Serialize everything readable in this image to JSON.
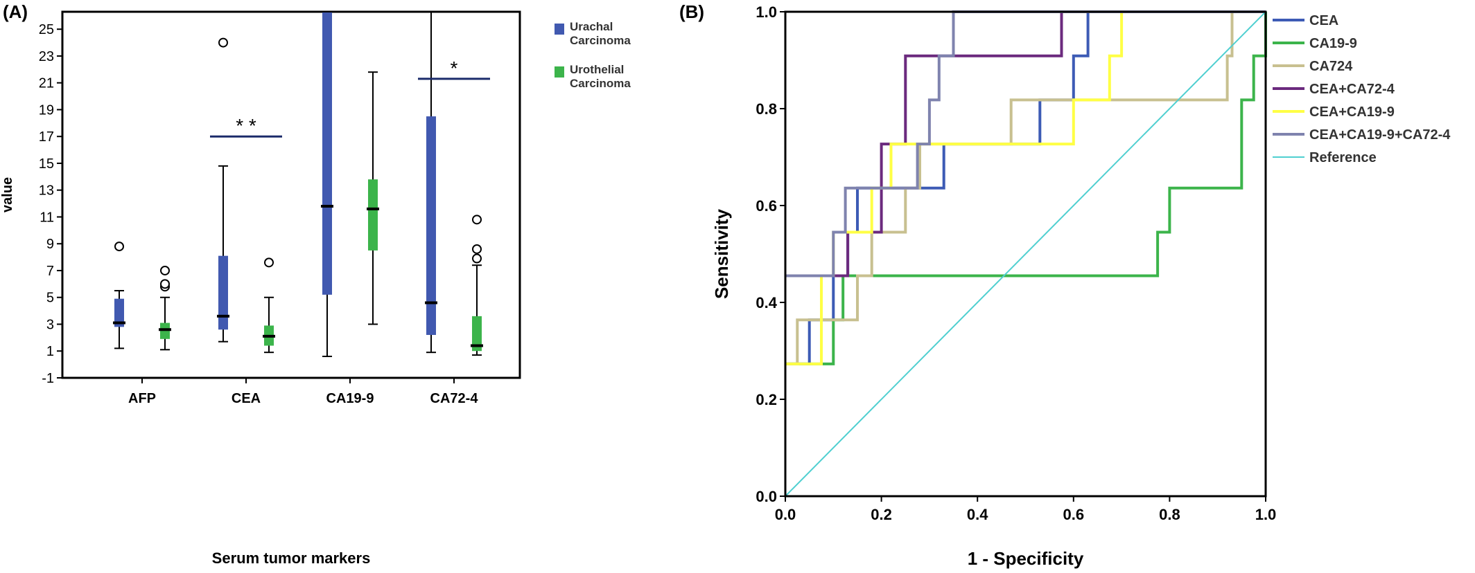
{
  "chart_data": [
    {
      "panel_label": "(A)",
      "type": "box",
      "xlabel": "Serum tumor markers",
      "ylabel": "value",
      "ylim": [
        -1,
        26.3
      ],
      "y_ticks": [
        -1,
        1,
        3,
        5,
        7,
        9,
        11,
        13,
        15,
        17,
        19,
        21,
        23,
        25
      ],
      "categories": [
        "AFP",
        "CEA",
        "CA19-9",
        "CA72-4"
      ],
      "legend": {
        "placement": "outside-right",
        "entries": [
          {
            "line1": "Urachal",
            "line2": "Carcinoma",
            "color": "#4159b0"
          },
          {
            "line1": "Urothelial",
            "line2": "Carcinoma",
            "color": "#3cb44b"
          }
        ]
      },
      "series": [
        {
          "name": "Urachal Carcinoma",
          "color": "#4159b0",
          "boxes": [
            {
              "category": "AFP",
              "whisker_low": 1.2,
              "q1": 2.8,
              "median": 3.1,
              "q3": 4.9,
              "whisker_high": 5.5,
              "outliers": [
                8.8
              ]
            },
            {
              "category": "CEA",
              "whisker_low": 1.7,
              "q1": 2.6,
              "median": 3.6,
              "q3": 8.1,
              "whisker_high": 14.8,
              "outliers": [
                24.0
              ]
            },
            {
              "category": "CA19-9",
              "whisker_low": 0.6,
              "q1": 5.2,
              "median": 11.8,
              "q3": 26.3,
              "whisker_high": 26.3,
              "outliers": []
            },
            {
              "category": "CA72-4",
              "whisker_low": 0.9,
              "q1": 2.2,
              "median": 4.6,
              "q3": 18.5,
              "whisker_high": 26.3,
              "outliers": []
            }
          ]
        },
        {
          "name": "Urothelial Carcinoma",
          "color": "#3cb44b",
          "boxes": [
            {
              "category": "AFP",
              "whisker_low": 1.1,
              "q1": 1.9,
              "median": 2.6,
              "q3": 3.1,
              "whisker_high": 5.0,
              "outliers": [
                5.8,
                6.0,
                7.0
              ]
            },
            {
              "category": "CEA",
              "whisker_low": 0.9,
              "q1": 1.4,
              "median": 2.1,
              "q3": 2.9,
              "whisker_high": 5.0,
              "outliers": [
                7.6
              ]
            },
            {
              "category": "CA19-9",
              "whisker_low": 3.0,
              "q1": 8.5,
              "median": 11.6,
              "q3": 13.8,
              "whisker_high": 21.8,
              "outliers": []
            },
            {
              "category": "CA72-4",
              "whisker_low": 0.7,
              "q1": 1.0,
              "median": 1.4,
              "q3": 3.6,
              "whisker_high": 7.4,
              "outliers": [
                7.9,
                8.6,
                10.8
              ]
            }
          ]
        }
      ],
      "significance": [
        {
          "category": "CEA",
          "label": "* *",
          "y": 17.0
        },
        {
          "category": "CA72-4",
          "label": "*",
          "y": 21.3
        }
      ]
    },
    {
      "panel_label": "(B)",
      "type": "line",
      "xlabel": "1 - Specificity",
      "ylabel": "Sensitivity",
      "xlim": [
        0,
        1
      ],
      "ylim": [
        0,
        1
      ],
      "x_ticks": [
        "0.0",
        "0.2",
        "0.4",
        "0.6",
        "0.8",
        "1.0"
      ],
      "y_ticks": [
        "0.0",
        "0.2",
        "0.4",
        "0.6",
        "0.8",
        "1.0"
      ],
      "legend": {
        "placement": "outside-right"
      },
      "series": [
        {
          "name": "CEA",
          "color": "#3d5bb5",
          "width": 4,
          "points": [
            [
              0,
              0.273
            ],
            [
              0.05,
              0.273
            ],
            [
              0.05,
              0.364
            ],
            [
              0.1,
              0.364
            ],
            [
              0.1,
              0.455
            ],
            [
              0.13,
              0.455
            ],
            [
              0.13,
              0.545
            ],
            [
              0.15,
              0.545
            ],
            [
              0.15,
              0.636
            ],
            [
              0.33,
              0.636
            ],
            [
              0.33,
              0.727
            ],
            [
              0.53,
              0.727
            ],
            [
              0.53,
              0.818
            ],
            [
              0.6,
              0.818
            ],
            [
              0.6,
              0.909
            ],
            [
              0.63,
              0.909
            ],
            [
              0.63,
              1.0
            ],
            [
              1,
              1
            ]
          ]
        },
        {
          "name": "CA19-9",
          "color": "#3cb44b",
          "width": 4,
          "points": [
            [
              0,
              0.273
            ],
            [
              0.1,
              0.273
            ],
            [
              0.1,
              0.364
            ],
            [
              0.12,
              0.364
            ],
            [
              0.12,
              0.455
            ],
            [
              0.775,
              0.455
            ],
            [
              0.775,
              0.545
            ],
            [
              0.8,
              0.545
            ],
            [
              0.8,
              0.636
            ],
            [
              0.95,
              0.636
            ],
            [
              0.95,
              0.818
            ],
            [
              0.975,
              0.818
            ],
            [
              0.975,
              0.909
            ],
            [
              1,
              0.909
            ],
            [
              1,
              1.0
            ]
          ]
        },
        {
          "name": "CA724",
          "color": "#c8c090",
          "width": 4,
          "points": [
            [
              0,
              0.273
            ],
            [
              0.025,
              0.273
            ],
            [
              0.025,
              0.364
            ],
            [
              0.05,
              0.364
            ],
            [
              0.05,
              0.364
            ],
            [
              0.15,
              0.364
            ],
            [
              0.15,
              0.455
            ],
            [
              0.18,
              0.455
            ],
            [
              0.18,
              0.545
            ],
            [
              0.25,
              0.545
            ],
            [
              0.25,
              0.636
            ],
            [
              0.28,
              0.636
            ],
            [
              0.28,
              0.727
            ],
            [
              0.47,
              0.727
            ],
            [
              0.47,
              0.818
            ],
            [
              0.92,
              0.818
            ],
            [
              0.92,
              0.909
            ],
            [
              0.93,
              0.909
            ],
            [
              0.93,
              1.0
            ],
            [
              1,
              1
            ]
          ]
        },
        {
          "name": "CEA+CA72-4",
          "color": "#6b2a7e",
          "width": 4,
          "points": [
            [
              0,
              0.455
            ],
            [
              0.13,
              0.455
            ],
            [
              0.13,
              0.545
            ],
            [
              0.2,
              0.545
            ],
            [
              0.2,
              0.727
            ],
            [
              0.22,
              0.727
            ],
            [
              0.22,
              0.727
            ],
            [
              0.25,
              0.727
            ],
            [
              0.25,
              0.909
            ],
            [
              0.575,
              0.909
            ],
            [
              0.575,
              1.0
            ],
            [
              1,
              1
            ]
          ]
        },
        {
          "name": "CEA+CA19-9",
          "color": "#ffff45",
          "width": 4,
          "points": [
            [
              0,
              0.273
            ],
            [
              0.075,
              0.273
            ],
            [
              0.075,
              0.455
            ],
            [
              0.1,
              0.455
            ],
            [
              0.1,
              0.545
            ],
            [
              0.18,
              0.545
            ],
            [
              0.18,
              0.636
            ],
            [
              0.22,
              0.636
            ],
            [
              0.22,
              0.727
            ],
            [
              0.6,
              0.727
            ],
            [
              0.6,
              0.818
            ],
            [
              0.675,
              0.818
            ],
            [
              0.675,
              0.909
            ],
            [
              0.7,
              0.909
            ],
            [
              0.7,
              1.0
            ],
            [
              1,
              1
            ]
          ]
        },
        {
          "name": "CEA+CA19-9+CA72-4",
          "color": "#7f83ae",
          "width": 4,
          "points": [
            [
              0,
              0.455
            ],
            [
              0.1,
              0.455
            ],
            [
              0.1,
              0.545
            ],
            [
              0.125,
              0.545
            ],
            [
              0.125,
              0.636
            ],
            [
              0.275,
              0.636
            ],
            [
              0.275,
              0.727
            ],
            [
              0.3,
              0.727
            ],
            [
              0.3,
              0.818
            ],
            [
              0.32,
              0.818
            ],
            [
              0.32,
              0.909
            ],
            [
              0.35,
              0.909
            ],
            [
              0.35,
              1.0
            ],
            [
              1,
              1
            ]
          ]
        },
        {
          "name": "Reference",
          "color": "#4fcfd0",
          "width": 2,
          "points": [
            [
              0,
              0
            ],
            [
              1,
              1
            ]
          ]
        }
      ]
    }
  ]
}
